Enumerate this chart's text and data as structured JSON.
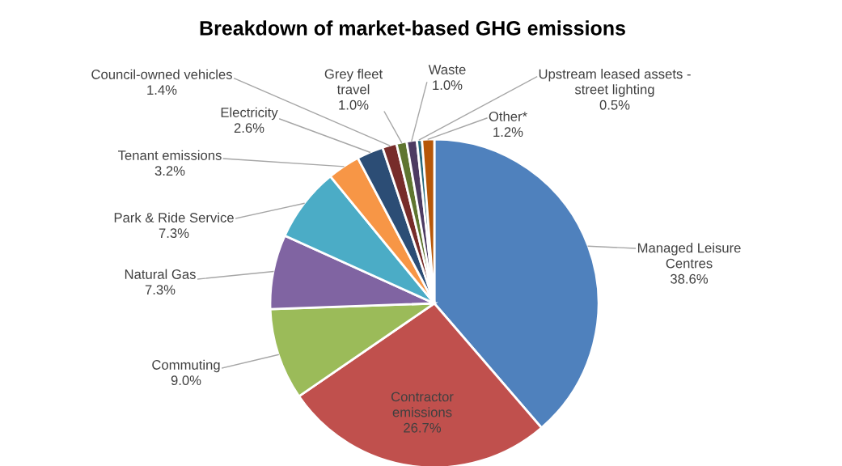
{
  "chart_data": {
    "type": "pie",
    "title": "Breakdown of market-based GHG emissions",
    "categories": [
      "Managed Leisure Centres",
      "Contractor emissions",
      "Commuting",
      "Natural Gas",
      "Park & Ride Service",
      "Tenant emissions",
      "Electricity",
      "Council-owned vehicles",
      "Grey fleet travel",
      "Waste",
      "Upstream leased assets - street lighting",
      "Other*"
    ],
    "values": [
      38.6,
      26.7,
      9.0,
      7.3,
      7.3,
      3.2,
      2.6,
      1.4,
      1.0,
      1.0,
      0.5,
      1.2
    ],
    "value_labels": [
      "38.6%",
      "26.7%",
      "9.0%",
      "7.3%",
      "7.3%",
      "3.2%",
      "2.6%",
      "1.4%",
      "1.0%",
      "1.0%",
      "0.5%",
      "1.2%"
    ],
    "colors": [
      "#4f81bd",
      "#c0504d",
      "#9bbb59",
      "#8064a2",
      "#4bacc6",
      "#f79646",
      "#2c4d75",
      "#772c2a",
      "#5f7530",
      "#4d3b62",
      "#276a7c",
      "#b65708"
    ],
    "legend": false
  }
}
